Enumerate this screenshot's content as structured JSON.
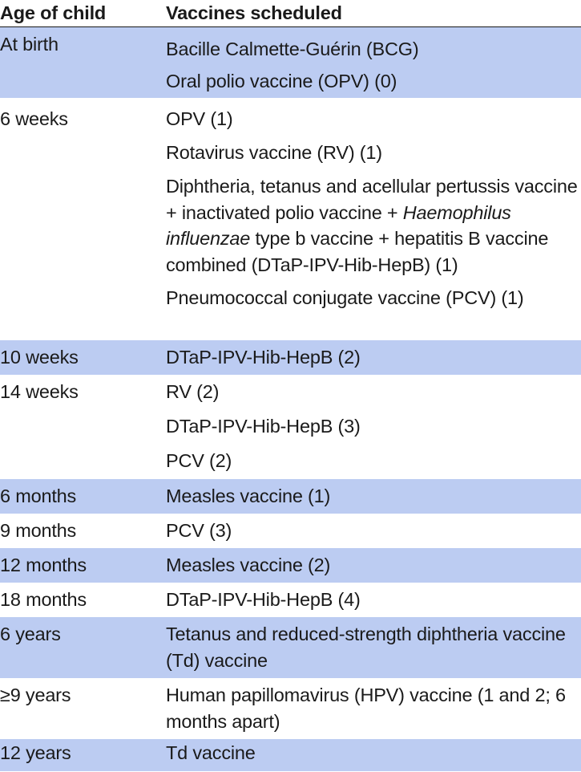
{
  "header": {
    "age": "Age of child",
    "vaccines": "Vaccines scheduled"
  },
  "rows": [
    {
      "age": "At birth",
      "vaccines": [
        "Bacille Calmette-Guérin (BCG)",
        "Oral polio vaccine (OPV) (0)"
      ]
    },
    {
      "age": "6 weeks",
      "vaccines": [
        "OPV (1)",
        "Rotavirus vaccine (RV) (1)",
        "Diphtheria, tetanus and acellular pertussis vaccine + inactivated polio vaccine + ",
        "Pneumococcal conjugate vaccine (PCV) (1)"
      ]
    },
    {
      "age": "10 weeks",
      "vaccines": [
        "DTaP-IPV-Hib-HepB (2)"
      ]
    },
    {
      "age": "14 weeks",
      "vaccines": [
        "RV (2)",
        "DTaP-IPV-Hib-HepB (3)",
        "PCV (2)"
      ]
    },
    {
      "age": "6 months",
      "vaccines": [
        "Measles vaccine (1)"
      ]
    },
    {
      "age": "9 months",
      "vaccines": [
        "PCV (3)"
      ]
    },
    {
      "age": "12 months",
      "vaccines": [
        "Measles vaccine (2)"
      ]
    },
    {
      "age": "18 months",
      "vaccines": [
        "DTaP-IPV-Hib-HepB (4)"
      ]
    },
    {
      "age": "6 years",
      "vaccines": [
        "Tetanus and reduced-strength diphtheria vaccine (Td) vaccine"
      ]
    },
    {
      "age": "≥9 years",
      "vaccines": [
        "Human papillomavirus (HPV) vaccine (1 and 2; 6 months apart)"
      ]
    },
    {
      "age": "12 years",
      "vaccines": [
        "Td vaccine"
      ]
    }
  ],
  "dtap_italic": "Haemophilus influenzae",
  "dtap_tail": " type b vaccine + hepatitis B vaccine combined (DTaP-IPV-Hib-HepB) (1)"
}
